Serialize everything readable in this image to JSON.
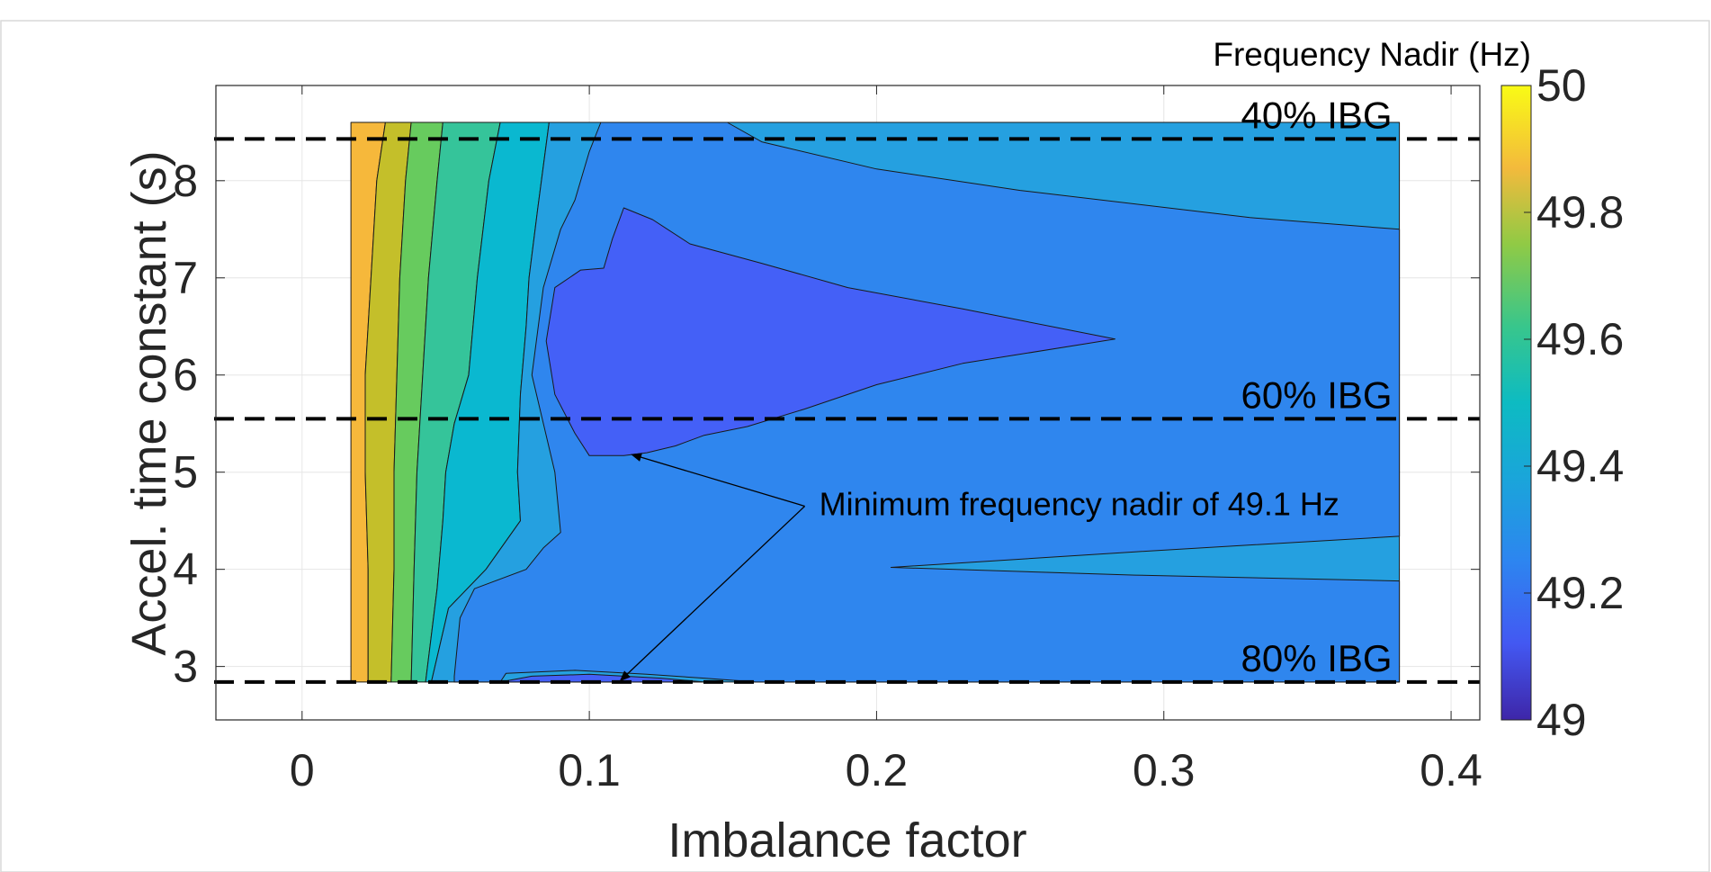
{
  "chart_data": {
    "type": "contour",
    "title": "",
    "xlabel": "Imbalance factor",
    "ylabel": "Accel. time constant (s)",
    "xlim": [
      -0.03,
      0.41
    ],
    "ylim": [
      2.45,
      8.98
    ],
    "x_ticks": [
      0,
      0.1,
      0.2,
      0.3,
      0.4
    ],
    "x_tick_labels": [
      "0",
      "0.1",
      "0.2",
      "0.3",
      "0.4"
    ],
    "y_ticks": [
      3,
      4,
      5,
      6,
      7,
      8
    ],
    "y_tick_labels": [
      "3",
      "4",
      "5",
      "6",
      "7",
      "8"
    ],
    "grid": true,
    "colorbar": {
      "label": "Frequency Nadir (Hz)",
      "range": [
        49,
        50
      ],
      "ticks": [
        49,
        49.2,
        49.4,
        49.6,
        49.8,
        50
      ],
      "tick_labels": [
        "49",
        "49.2",
        "49.4",
        "49.6",
        "49.8",
        "50"
      ],
      "colormap": "parula"
    },
    "data_extent": {
      "x": [
        0.017,
        0.382
      ],
      "y": [
        2.84,
        8.6
      ]
    },
    "levels": [
      {
        "value": 49.8,
        "color": "#F6B83B"
      },
      {
        "value": 49.7,
        "color": "#C4BF2A"
      },
      {
        "value": 49.6,
        "color": "#67CB5E"
      },
      {
        "value": 49.5,
        "color": "#35C49A"
      },
      {
        "value": 49.4,
        "color": "#0AB8D0"
      },
      {
        "value": 49.3,
        "color": "#25A0E0"
      },
      {
        "value": 49.2,
        "color": "#2F86EE"
      },
      {
        "value": 49.1,
        "color": "#4460F7"
      }
    ],
    "contours": [
      {
        "level": 49.8,
        "points": [
          [
            0.017,
            8.6
          ],
          [
            0.017,
            2.84
          ],
          [
            0.023,
            2.84
          ],
          [
            0.023,
            4.0
          ],
          [
            0.022,
            5.0
          ],
          [
            0.022,
            6.0
          ],
          [
            0.024,
            7.0
          ],
          [
            0.026,
            8.0
          ],
          [
            0.029,
            8.6
          ]
        ]
      },
      {
        "level": 49.7,
        "points": [
          [
            0.029,
            8.6
          ],
          [
            0.026,
            8.0
          ],
          [
            0.024,
            7.0
          ],
          [
            0.022,
            6.0
          ],
          [
            0.022,
            5.0
          ],
          [
            0.023,
            4.0
          ],
          [
            0.023,
            2.84
          ],
          [
            0.031,
            2.84
          ],
          [
            0.032,
            4.0
          ],
          [
            0.032,
            5.0
          ],
          [
            0.033,
            6.0
          ],
          [
            0.034,
            7.0
          ],
          [
            0.036,
            8.0
          ],
          [
            0.038,
            8.6
          ]
        ]
      },
      {
        "level": 49.6,
        "points": [
          [
            0.038,
            8.6
          ],
          [
            0.036,
            8.0
          ],
          [
            0.034,
            7.0
          ],
          [
            0.033,
            6.0
          ],
          [
            0.032,
            5.0
          ],
          [
            0.032,
            4.0
          ],
          [
            0.031,
            2.84
          ],
          [
            0.038,
            2.84
          ],
          [
            0.039,
            4.0
          ],
          [
            0.04,
            5.0
          ],
          [
            0.042,
            6.0
          ],
          [
            0.044,
            7.0
          ],
          [
            0.047,
            8.0
          ],
          [
            0.049,
            8.6
          ]
        ]
      },
      {
        "level": 49.5,
        "points": [
          [
            0.049,
            8.6
          ],
          [
            0.047,
            8.0
          ],
          [
            0.044,
            7.0
          ],
          [
            0.042,
            6.0
          ],
          [
            0.04,
            5.0
          ],
          [
            0.039,
            4.0
          ],
          [
            0.038,
            2.84
          ],
          [
            0.043,
            2.84
          ],
          [
            0.047,
            3.8
          ],
          [
            0.049,
            4.5
          ],
          [
            0.05,
            5.0
          ],
          [
            0.053,
            5.5
          ],
          [
            0.058,
            6.0
          ],
          [
            0.061,
            7.0
          ],
          [
            0.065,
            8.0
          ],
          [
            0.069,
            8.6
          ]
        ]
      },
      {
        "level": 49.4,
        "points": [
          [
            0.069,
            8.6
          ],
          [
            0.065,
            8.0
          ],
          [
            0.061,
            7.0
          ],
          [
            0.058,
            6.0
          ],
          [
            0.053,
            5.5
          ],
          [
            0.05,
            5.0
          ],
          [
            0.049,
            4.5
          ],
          [
            0.047,
            3.8
          ],
          [
            0.043,
            2.84
          ],
          [
            0.045,
            2.84
          ],
          [
            0.051,
            3.6
          ],
          [
            0.064,
            4.0
          ],
          [
            0.076,
            4.5
          ],
          [
            0.075,
            5.0
          ],
          [
            0.076,
            5.8
          ],
          [
            0.078,
            6.5
          ],
          [
            0.079,
            7.0
          ],
          [
            0.082,
            7.7
          ],
          [
            0.086,
            8.6
          ]
        ]
      },
      {
        "level": 49.3,
        "points": [
          [
            0.086,
            8.6
          ],
          [
            0.082,
            7.7
          ],
          [
            0.079,
            7.0
          ],
          [
            0.078,
            6.5
          ],
          [
            0.076,
            5.8
          ],
          [
            0.075,
            5.0
          ],
          [
            0.076,
            4.5
          ],
          [
            0.064,
            4.0
          ],
          [
            0.051,
            3.6
          ],
          [
            0.045,
            2.84
          ],
          [
            0.382,
            2.84
          ],
          [
            0.382,
            8.6
          ]
        ]
      },
      {
        "level": 49.2,
        "points": [
          [
            0.069,
            2.84
          ],
          [
            0.071,
            2.93
          ],
          [
            0.095,
            2.96
          ],
          [
            0.12,
            2.92
          ],
          [
            0.14,
            2.88
          ],
          [
            0.158,
            2.84
          ],
          [
            0.382,
            2.84
          ],
          [
            0.382,
            3.88
          ],
          [
            0.29,
            3.94
          ],
          [
            0.205,
            4.02
          ],
          [
            0.29,
            4.18
          ],
          [
            0.382,
            4.34
          ],
          [
            0.382,
            7.5
          ],
          [
            0.33,
            7.62
          ],
          [
            0.25,
            7.9
          ],
          [
            0.2,
            8.12
          ],
          [
            0.16,
            8.4
          ],
          [
            0.148,
            8.6
          ],
          [
            0.104,
            8.6
          ],
          [
            0.1,
            8.3
          ],
          [
            0.095,
            7.8
          ],
          [
            0.09,
            7.5
          ],
          [
            0.084,
            6.9
          ],
          [
            0.08,
            6.0
          ],
          [
            0.088,
            5.0
          ],
          [
            0.09,
            4.38
          ],
          [
            0.084,
            4.22
          ],
          [
            0.078,
            4.0
          ],
          [
            0.06,
            3.8
          ],
          [
            0.055,
            3.5
          ],
          [
            0.053,
            2.9
          ],
          [
            0.053,
            2.84
          ]
        ]
      },
      {
        "level": 49.1,
        "points": [
          [
            0.112,
            7.72
          ],
          [
            0.122,
            7.6
          ],
          [
            0.135,
            7.35
          ],
          [
            0.16,
            7.15
          ],
          [
            0.19,
            6.9
          ],
          [
            0.23,
            6.68
          ],
          [
            0.283,
            6.37
          ],
          [
            0.23,
            6.12
          ],
          [
            0.2,
            5.9
          ],
          [
            0.175,
            5.65
          ],
          [
            0.155,
            5.47
          ],
          [
            0.14,
            5.38
          ],
          [
            0.13,
            5.27
          ],
          [
            0.12,
            5.2
          ],
          [
            0.112,
            5.17
          ],
          [
            0.1,
            5.17
          ],
          [
            0.095,
            5.4
          ],
          [
            0.088,
            5.8
          ],
          [
            0.085,
            6.35
          ],
          [
            0.088,
            6.9
          ],
          [
            0.097,
            7.08
          ],
          [
            0.105,
            7.1
          ],
          [
            0.108,
            7.4
          ]
        ]
      },
      {
        "level": 49.1,
        "points": [
          [
            0.069,
            2.84
          ],
          [
            0.08,
            2.9
          ],
          [
            0.1,
            2.92
          ],
          [
            0.125,
            2.88
          ],
          [
            0.14,
            2.84
          ]
        ]
      }
    ],
    "reference_lines": [
      {
        "y": 8.43,
        "label": "40% IBG"
      },
      {
        "y": 5.55,
        "label": "60% IBG"
      },
      {
        "y": 2.84,
        "label": "80% IBG"
      }
    ],
    "annotation": {
      "text": "Minimum frequency nadir of 49.1 Hz",
      "text_at": [
        0.175,
        4.65
      ],
      "arrow_targets": [
        [
          0.115,
          5.18
        ],
        [
          0.111,
          2.86
        ]
      ]
    }
  }
}
